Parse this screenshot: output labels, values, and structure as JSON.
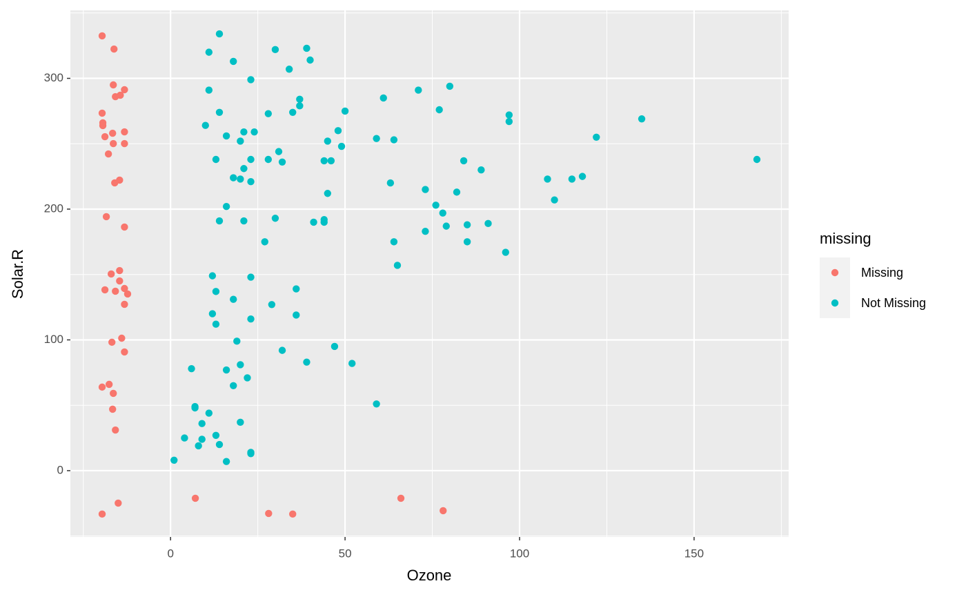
{
  "chart_data": {
    "type": "scatter",
    "x_label": "Ozone",
    "y_label": "Solar.R",
    "legend_title": "missing",
    "legend": "right",
    "xlim": [
      -28.7,
      177.1
    ],
    "ylim": [
      -50.7,
      352
    ],
    "xticks": [
      0,
      50,
      100,
      150
    ],
    "yticks": [
      0,
      100,
      200,
      300
    ],
    "grid": true,
    "series": [
      {
        "name": "Missing",
        "color": "#F8766D",
        "x": [
          -19.6,
          -16.2,
          -16.4,
          -15.8,
          -14.4,
          -13.2,
          -19.6,
          -19.4,
          -19.4,
          -13.2,
          -16.6,
          -18.8,
          -16.4,
          -13.2,
          -17.8,
          -14.6,
          -16.0,
          -18.4,
          -13.2,
          -14.6,
          -17.0,
          -14.6,
          -18.8,
          -15.8,
          -13.2,
          -12.3,
          -13.2,
          -14.0,
          -16.8,
          -13.2,
          -17.6,
          -19.6,
          -16.4,
          -16.6,
          -15.8,
          -19.6,
          -15.0,
          7.1,
          28.1,
          35.0,
          66.0,
          78.1
        ],
        "y": [
          332.5,
          322.4,
          295.0,
          286.0,
          287.1,
          291.3,
          273.4,
          266.0,
          263.9,
          259.1,
          258.0,
          255.4,
          250.1,
          250.1,
          242.2,
          222.2,
          220.1,
          194.2,
          186.3,
          153.0,
          150.4,
          145.1,
          138.3,
          137.2,
          139.3,
          135.1,
          127.2,
          101.3,
          98.2,
          90.8,
          66.0,
          63.9,
          59.1,
          47.0,
          31.1,
          -33.2,
          -24.8,
          -21.1,
          -32.7,
          -33.2,
          -21.1,
          -30.6
        ]
      },
      {
        "name": "Not Missing",
        "color": "#00BFC4",
        "x": [
          14,
          11,
          39,
          30,
          18,
          40,
          34,
          23,
          11,
          61,
          71,
          80,
          37,
          37,
          14,
          28,
          35,
          50,
          77,
          97,
          97,
          135,
          10,
          16,
          21,
          24,
          48,
          20,
          45,
          59,
          64,
          122,
          31,
          49,
          13,
          23,
          28,
          32,
          44,
          46,
          84,
          89,
          168,
          21,
          18,
          20,
          23,
          63,
          108,
          115,
          118,
          73,
          82,
          45,
          76,
          110,
          16,
          78,
          14,
          21,
          30,
          41,
          44,
          44,
          79,
          85,
          91,
          27,
          64,
          85,
          73,
          96,
          65,
          12,
          23,
          13,
          36,
          18,
          29,
          12,
          23,
          36,
          13,
          19,
          47,
          32,
          39,
          52,
          20,
          16,
          22,
          6,
          18,
          59,
          7,
          7,
          11,
          9,
          20,
          4,
          13,
          9,
          14,
          8,
          23,
          23,
          1,
          16
        ],
        "y": [
          334,
          320,
          323,
          322,
          313,
          314,
          307,
          299,
          291,
          285,
          291,
          294,
          284,
          279,
          274,
          273,
          274,
          275,
          276,
          272,
          267,
          269,
          264,
          256,
          259,
          259,
          260,
          252,
          252,
          254,
          253,
          255,
          244,
          248,
          238,
          238,
          238,
          236,
          237,
          237,
          237,
          230,
          238,
          231,
          224,
          223,
          221,
          220,
          223,
          223,
          225,
          215,
          213,
          212,
          203,
          207,
          202,
          197,
          191,
          191,
          193,
          190,
          192,
          190,
          187,
          188,
          189,
          175,
          175,
          175,
          183,
          167,
          157,
          149,
          148,
          137,
          139,
          131,
          127,
          120,
          116,
          119,
          112,
          99,
          95,
          92,
          83,
          82,
          81,
          77,
          71,
          78,
          65,
          51,
          49,
          48,
          44,
          36,
          37,
          25,
          27,
          24,
          20,
          19,
          14,
          13,
          8,
          7
        ]
      }
    ]
  }
}
